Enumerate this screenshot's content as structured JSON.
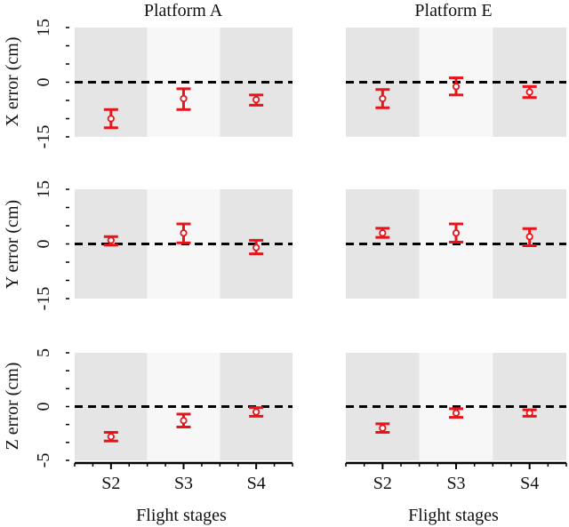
{
  "figure": {
    "colors": {
      "band_dark": "#e5e5e5",
      "band_light": "#f7f7f7",
      "marker": "#e8141a",
      "zero_line": "#000000",
      "axis": "#000000"
    }
  },
  "chart_data": {
    "type": "errorbar",
    "columns": [
      "Platform A",
      "Platform E"
    ],
    "categories": [
      "S2",
      "S3",
      "S4"
    ],
    "xlabel": "Flight stages",
    "rows": [
      {
        "ylabel": "X error (cm)",
        "ylim": [
          -15,
          15
        ],
        "yticks": [
          "15",
          "0",
          "-15"
        ],
        "panels": [
          {
            "mean": [
              -10,
              -4.5,
              -4.8
            ],
            "low": [
              -12.5,
              -7.5,
              -6.3
            ],
            "high": [
              -7.5,
              -1.8,
              -3.5
            ]
          },
          {
            "mean": [
              -4.5,
              -1.2,
              -2.7
            ],
            "low": [
              -7.0,
              -3.5,
              -4.2
            ],
            "high": [
              -2.0,
              1.2,
              -1.2
            ]
          }
        ]
      },
      {
        "ylabel": "Y error (cm)",
        "ylim": [
          -15,
          15
        ],
        "yticks": [
          "15",
          "0",
          "-15"
        ],
        "panels": [
          {
            "mean": [
              1.0,
              3.0,
              -1.0
            ],
            "low": [
              -0.3,
              0.3,
              -2.7
            ],
            "high": [
              2.0,
              5.5,
              1.0
            ]
          },
          {
            "mean": [
              3.0,
              3.0,
              2.0
            ],
            "low": [
              1.8,
              0.5,
              -0.5
            ],
            "high": [
              4.3,
              5.5,
              4.2
            ]
          }
        ]
      },
      {
        "ylabel": "Z error (cm)",
        "ylim": [
          -5,
          5
        ],
        "yticks": [
          "5",
          "0",
          "-5"
        ],
        "panels": [
          {
            "mean": [
              -2.8,
              -1.3,
              -0.5
            ],
            "low": [
              -3.2,
              -1.9,
              -0.9
            ],
            "high": [
              -2.4,
              -0.7,
              -0.1
            ]
          },
          {
            "mean": [
              -2.0,
              -0.6,
              -0.6
            ],
            "low": [
              -2.4,
              -1.0,
              -0.9
            ],
            "high": [
              -1.6,
              -0.2,
              -0.3
            ]
          }
        ]
      }
    ]
  }
}
